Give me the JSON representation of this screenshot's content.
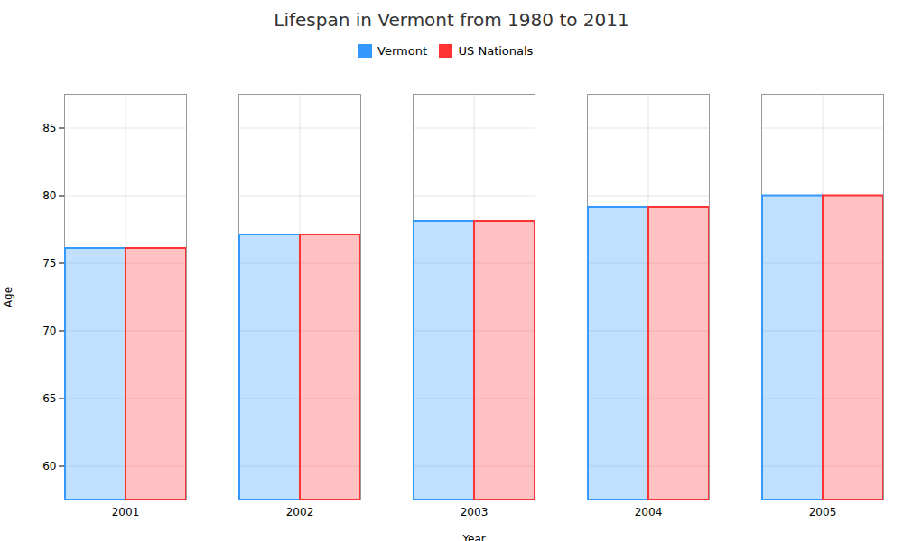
{
  "chart_data": {
    "type": "bar",
    "title": "Lifespan in Vermont from 1980 to 2011",
    "x_label": "Year",
    "y_label": "Age",
    "categories": [
      "2001",
      "2002",
      "2003",
      "2004",
      "2005"
    ],
    "series": [
      {
        "name": "Vermont",
        "color": "#3399ff",
        "values": [
          76.1,
          77.1,
          78.1,
          79.1,
          80.0
        ]
      },
      {
        "name": "US Nationals",
        "color": "#ff3333",
        "values": [
          76.1,
          77.1,
          78.1,
          79.1,
          80.0
        ]
      }
    ],
    "ylim": [
      57.5,
      87.5
    ],
    "yticks": [
      60,
      65,
      70,
      75,
      80,
      85
    ],
    "grid": true,
    "legend": "top"
  }
}
